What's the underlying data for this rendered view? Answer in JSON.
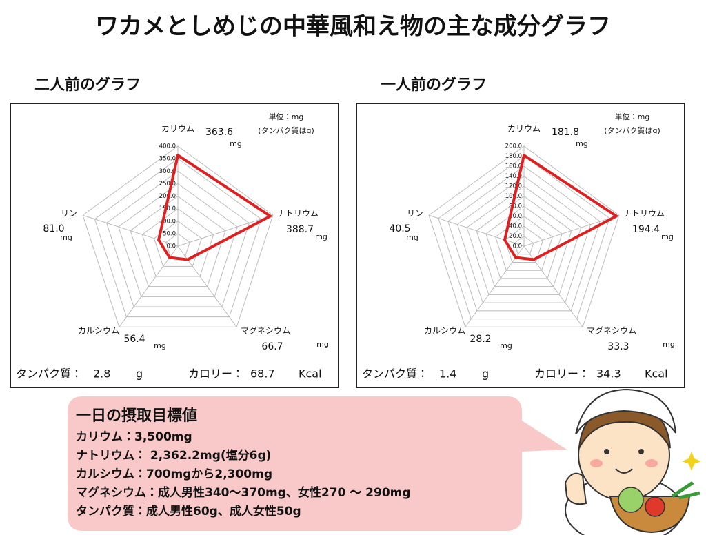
{
  "title": "ワカメとしめじの中華風和え物の主な成分グラフ",
  "chart_data": [
    {
      "type": "radar",
      "title": "二人前のグラフ",
      "unit_note": [
        "単位：mg",
        "(タンパク質はg)"
      ],
      "categories": [
        "カリウム",
        "ナトリウム",
        "マグネシウム",
        "カルシウム",
        "リン"
      ],
      "values": [
        363.6,
        388.7,
        66.7,
        56.4,
        81.0
      ],
      "value_labels": [
        "363.6",
        "388.7",
        "66.7",
        "56.4",
        "81.0"
      ],
      "value_units": [
        "mg",
        "mg",
        "mg",
        "mg",
        "mg"
      ],
      "color": "#e02020",
      "rlim": [
        0,
        400
      ],
      "rticks": [
        {
          "value": 0,
          "label": "0.0"
        },
        {
          "value": 50,
          "label": "50.0"
        },
        {
          "value": 100,
          "label": "100.0"
        },
        {
          "value": 150,
          "label": "150.0"
        },
        {
          "value": 200,
          "label": "200.0"
        },
        {
          "value": 250,
          "label": "250.0"
        },
        {
          "value": 300,
          "label": "300.0"
        },
        {
          "value": 350,
          "label": "350.0"
        },
        {
          "value": 400,
          "label": "400.0"
        }
      ],
      "protein_label": "タンパク質：",
      "protein_value": 2.8,
      "protein_unit": "g",
      "calorie_label": "カロリー：",
      "calorie_value": 68.7,
      "calorie_unit": "Kcal"
    },
    {
      "type": "radar",
      "title": "一人前のグラフ",
      "unit_note": [
        "単位：mg",
        "(タンパク質はg)"
      ],
      "categories": [
        "カリウム",
        "ナトリウム",
        "マグネシウム",
        "カルシウム",
        "リン"
      ],
      "values": [
        181.8,
        194.4,
        33.3,
        28.2,
        40.5
      ],
      "value_labels": [
        "181.8",
        "194.4",
        "33.3",
        "28.2",
        "40.5"
      ],
      "value_units": [
        "mg",
        "mg",
        "mg",
        "mg",
        "mg"
      ],
      "color": "#e02020",
      "rlim": [
        0,
        200
      ],
      "rticks": [
        {
          "value": 0,
          "label": "0.0"
        },
        {
          "value": 20,
          "label": "20.0"
        },
        {
          "value": 40,
          "label": "40.0"
        },
        {
          "value": 60,
          "label": "60.0"
        },
        {
          "value": 80,
          "label": "80.0"
        },
        {
          "value": 100,
          "label": "100.0"
        },
        {
          "value": 120,
          "label": "120.0"
        },
        {
          "value": 140,
          "label": "140.0"
        },
        {
          "value": 160,
          "label": "160.0"
        },
        {
          "value": 180,
          "label": "180.0"
        },
        {
          "value": 200,
          "label": "200.0"
        }
      ],
      "protein_label": "タンパク質：",
      "protein_value": 1.4,
      "protein_unit": "g",
      "calorie_label": "カロリー：",
      "calorie_value": 34.3,
      "calorie_unit": "Kcal"
    }
  ],
  "goals": {
    "heading": "一日の摂取目標値",
    "lines": [
      "カリウム：3,500mg",
      "ナトリウム： 2,362.2mg(塩分6g)",
      "カルシウム：700mgから2,300mg",
      "マグネシウム：成人男性340～370mg、女性270 ～ 290mg",
      "タンパク質：成人男性60g、成人女性50g"
    ]
  }
}
